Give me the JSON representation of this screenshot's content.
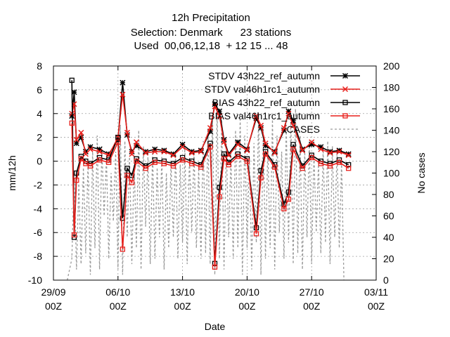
{
  "chart_data": {
    "type": "line",
    "title_lines": [
      "12h Precipitation",
      "Selection: Denmark      23 stations",
      "Used  00,06,12,18  + 12 15 ... 48"
    ],
    "xlabel": "Date",
    "ylabel": "mm/12h",
    "y2label": "No cases",
    "x_ticks": [
      "29/09\n00Z",
      "06/10\n00Z",
      "13/10\n00Z",
      "20/10\n00Z",
      "27/10\n00Z",
      "03/11\n00Z"
    ],
    "x_tick_dates": [
      "2023-09-29T00:00",
      "2023-10-06T00:00",
      "2023-10-13T00:00",
      "2023-10-20T00:00",
      "2023-10-27T00:00",
      "2023-11-03T00:00"
    ],
    "xlim": [
      "2023-09-29T00:00",
      "2023-11-03T00:00"
    ],
    "ylim": [
      -10,
      8
    ],
    "y_ticks": [
      -10,
      -8,
      -6,
      -4,
      -2,
      0,
      2,
      4,
      6,
      8
    ],
    "y2lim": [
      0,
      200
    ],
    "y2_ticks": [
      0,
      20,
      40,
      60,
      80,
      100,
      120,
      140,
      160,
      180,
      200
    ],
    "grid": true,
    "legend_position": "top-right",
    "series": [
      {
        "name": "STDV 43h22_ref_autumn",
        "axis": "y",
        "color": "#000000",
        "marker": "star",
        "x": [
          "2023-10-01T00:00",
          "2023-10-01T06:00",
          "2023-10-01T12:00",
          "2023-10-02T00:00",
          "2023-10-02T12:00",
          "2023-10-03T00:00",
          "2023-10-04T00:00",
          "2023-10-05T00:00",
          "2023-10-06T00:00",
          "2023-10-06T12:00",
          "2023-10-07T00:00",
          "2023-10-07T12:00",
          "2023-10-08T00:00",
          "2023-10-09T00:00",
          "2023-10-10T00:00",
          "2023-10-11T00:00",
          "2023-10-12T00:00",
          "2023-10-13T00:00",
          "2023-10-14T00:00",
          "2023-10-15T00:00",
          "2023-10-16T00:00",
          "2023-10-16T12:00",
          "2023-10-17T00:00",
          "2023-10-17T12:00",
          "2023-10-18T00:00",
          "2023-10-19T00:00",
          "2023-10-20T00:00",
          "2023-10-21T00:00",
          "2023-10-21T12:00",
          "2023-10-22T00:00",
          "2023-10-23T00:00",
          "2023-10-24T00:00",
          "2023-10-24T12:00",
          "2023-10-25T00:00",
          "2023-10-26T00:00",
          "2023-10-27T00:00",
          "2023-10-28T00:00",
          "2023-10-29T00:00",
          "2023-10-30T00:00",
          "2023-10-31T00:00"
        ],
        "y": [
          3.8,
          5.8,
          1.5,
          2.0,
          0.8,
          1.2,
          1.0,
          0.6,
          1.8,
          6.6,
          2.2,
          0.8,
          1.3,
          0.8,
          1.0,
          0.9,
          0.6,
          1.4,
          0.8,
          0.9,
          2.5,
          4.8,
          4.2,
          1.8,
          0.6,
          1.6,
          1.0,
          3.6,
          2.8,
          1.3,
          0.8,
          2.6,
          4.2,
          3.4,
          1.0,
          1.4,
          1.2,
          0.8,
          0.9,
          0.6
        ]
      },
      {
        "name": "STDV val46h1rc1_autumn",
        "axis": "y",
        "color": "#e8201c",
        "marker": "x",
        "x": [
          "2023-10-01T00:00",
          "2023-10-01T06:00",
          "2023-10-01T12:00",
          "2023-10-02T00:00",
          "2023-10-02T12:00",
          "2023-10-03T00:00",
          "2023-10-04T00:00",
          "2023-10-05T00:00",
          "2023-10-06T00:00",
          "2023-10-06T12:00",
          "2023-10-07T00:00",
          "2023-10-07T12:00",
          "2023-10-08T00:00",
          "2023-10-09T00:00",
          "2023-10-10T00:00",
          "2023-10-11T00:00",
          "2023-10-12T00:00",
          "2023-10-13T00:00",
          "2023-10-14T00:00",
          "2023-10-15T00:00",
          "2023-10-16T00:00",
          "2023-10-16T12:00",
          "2023-10-17T00:00",
          "2023-10-17T12:00",
          "2023-10-18T00:00",
          "2023-10-19T00:00",
          "2023-10-20T00:00",
          "2023-10-21T00:00",
          "2023-10-21T12:00",
          "2023-10-22T00:00",
          "2023-10-23T00:00",
          "2023-10-24T00:00",
          "2023-10-24T12:00",
          "2023-10-25T00:00",
          "2023-10-26T00:00",
          "2023-10-27T00:00",
          "2023-10-28T00:00",
          "2023-10-29T00:00",
          "2023-10-30T00:00",
          "2023-10-31T00:00"
        ],
        "y": [
          4.0,
          4.8,
          1.8,
          2.4,
          0.6,
          1.0,
          0.8,
          0.5,
          2.0,
          5.6,
          2.4,
          0.6,
          1.6,
          0.7,
          0.8,
          0.8,
          0.5,
          1.2,
          0.7,
          0.8,
          2.8,
          4.6,
          3.8,
          1.6,
          0.5,
          1.4,
          0.9,
          3.8,
          3.0,
          1.5,
          0.7,
          2.8,
          4.0,
          3.0,
          0.9,
          1.6,
          1.0,
          0.7,
          0.8,
          0.5
        ]
      },
      {
        "name": "BIAS 43h22_ref_autumn",
        "axis": "y",
        "color": "#000000",
        "marker": "square",
        "x": [
          "2023-10-01T00:00",
          "2023-10-01T06:00",
          "2023-10-01T12:00",
          "2023-10-02T00:00",
          "2023-10-02T12:00",
          "2023-10-03T00:00",
          "2023-10-04T00:00",
          "2023-10-05T00:00",
          "2023-10-06T00:00",
          "2023-10-06T12:00",
          "2023-10-07T00:00",
          "2023-10-07T12:00",
          "2023-10-08T00:00",
          "2023-10-09T00:00",
          "2023-10-10T00:00",
          "2023-10-11T00:00",
          "2023-10-12T00:00",
          "2023-10-13T00:00",
          "2023-10-14T00:00",
          "2023-10-15T00:00",
          "2023-10-16T00:00",
          "2023-10-16T12:00",
          "2023-10-17T00:00",
          "2023-10-17T12:00",
          "2023-10-18T00:00",
          "2023-10-19T00:00",
          "2023-10-20T00:00",
          "2023-10-21T00:00",
          "2023-10-21T12:00",
          "2023-10-22T00:00",
          "2023-10-23T00:00",
          "2023-10-24T00:00",
          "2023-10-24T12:00",
          "2023-10-25T00:00",
          "2023-10-26T00:00",
          "2023-10-27T00:00",
          "2023-10-28T00:00",
          "2023-10-29T00:00",
          "2023-10-30T00:00",
          "2023-10-31T00:00"
        ],
        "y": [
          6.8,
          -6.4,
          -1.0,
          0.4,
          0.0,
          -0.2,
          0.3,
          0.1,
          2.0,
          -4.8,
          -0.6,
          -1.2,
          0.2,
          -0.4,
          0.1,
          0.0,
          -0.2,
          0.3,
          0.0,
          -0.3,
          1.5,
          -8.6,
          -2.2,
          0.6,
          -0.1,
          0.6,
          0.2,
          -5.6,
          -0.8,
          0.8,
          -0.3,
          -3.6,
          -2.6,
          1.4,
          -0.4,
          0.5,
          0.0,
          -0.2,
          0.1,
          -0.3
        ]
      },
      {
        "name": "BIAS val46h1rc1_autumn",
        "axis": "y",
        "color": "#e8201c",
        "marker": "square",
        "x": [
          "2023-10-01T00:00",
          "2023-10-01T06:00",
          "2023-10-01T12:00",
          "2023-10-02T00:00",
          "2023-10-02T12:00",
          "2023-10-03T00:00",
          "2023-10-04T00:00",
          "2023-10-05T00:00",
          "2023-10-06T00:00",
          "2023-10-06T12:00",
          "2023-10-07T00:00",
          "2023-10-07T12:00",
          "2023-10-08T00:00",
          "2023-10-09T00:00",
          "2023-10-10T00:00",
          "2023-10-11T00:00",
          "2023-10-12T00:00",
          "2023-10-13T00:00",
          "2023-10-14T00:00",
          "2023-10-15T00:00",
          "2023-10-16T00:00",
          "2023-10-16T12:00",
          "2023-10-17T00:00",
          "2023-10-17T12:00",
          "2023-10-18T00:00",
          "2023-10-19T00:00",
          "2023-10-20T00:00",
          "2023-10-21T00:00",
          "2023-10-21T12:00",
          "2023-10-22T00:00",
          "2023-10-23T00:00",
          "2023-10-24T00:00",
          "2023-10-24T12:00",
          "2023-10-25T00:00",
          "2023-10-26T00:00",
          "2023-10-27T00:00",
          "2023-10-28T00:00",
          "2023-10-29T00:00",
          "2023-10-30T00:00",
          "2023-10-31T00:00"
        ],
        "y": [
          3.2,
          -6.2,
          -1.6,
          0.2,
          -0.2,
          -0.4,
          0.1,
          -0.1,
          1.6,
          -7.4,
          -1.2,
          -1.8,
          0.0,
          -0.6,
          -0.1,
          -0.2,
          -0.4,
          0.1,
          -0.2,
          -0.5,
          1.2,
          -8.9,
          -3.0,
          0.2,
          -0.3,
          0.4,
          0.0,
          -6.1,
          -1.4,
          0.6,
          -0.5,
          -4.0,
          -3.2,
          1.0,
          -0.6,
          0.3,
          -0.2,
          -0.4,
          -0.1,
          -0.6
        ]
      },
      {
        "name": "CASES",
        "axis": "y2",
        "color": "#999999",
        "marker": "none",
        "dashed": true,
        "x": [
          "2023-09-30T12:00",
          "2023-10-01T00:00",
          "2023-10-01T06:00",
          "2023-10-01T12:00",
          "2023-10-01T18:00",
          "2023-10-02T00:00",
          "2023-10-02T06:00",
          "2023-10-02T12:00",
          "2023-10-02T18:00",
          "2023-10-03T00:00",
          "2023-10-03T06:00",
          "2023-10-03T12:00",
          "2023-10-03T18:00",
          "2023-10-04T00:00",
          "2023-10-04T06:00",
          "2023-10-04T12:00",
          "2023-10-04T18:00",
          "2023-10-05T00:00",
          "2023-10-05T06:00",
          "2023-10-05T12:00",
          "2023-10-05T18:00",
          "2023-10-06T00:00",
          "2023-10-06T06:00",
          "2023-10-06T12:00",
          "2023-10-06T18:00",
          "2023-10-07T00:00",
          "2023-10-07T06:00",
          "2023-10-07T12:00",
          "2023-10-07T18:00",
          "2023-10-08T00:00",
          "2023-10-08T06:00",
          "2023-10-08T12:00",
          "2023-10-08T18:00",
          "2023-10-09T00:00",
          "2023-10-09T06:00",
          "2023-10-09T12:00",
          "2023-10-09T18:00",
          "2023-10-10T00:00",
          "2023-10-10T06:00",
          "2023-10-10T12:00",
          "2023-10-10T18:00",
          "2023-10-11T00:00",
          "2023-10-11T06:00",
          "2023-10-11T12:00",
          "2023-10-11T18:00",
          "2023-10-12T00:00",
          "2023-10-12T06:00",
          "2023-10-12T12:00",
          "2023-10-12T18:00",
          "2023-10-13T00:00",
          "2023-10-13T06:00",
          "2023-10-13T12:00",
          "2023-10-13T18:00",
          "2023-10-14T00:00",
          "2023-10-14T06:00",
          "2023-10-14T12:00",
          "2023-10-14T18:00",
          "2023-10-15T00:00",
          "2023-10-15T06:00",
          "2023-10-15T12:00",
          "2023-10-15T18:00",
          "2023-10-16T00:00",
          "2023-10-16T06:00",
          "2023-10-16T12:00",
          "2023-10-16T18:00",
          "2023-10-17T00:00",
          "2023-10-17T06:00",
          "2023-10-17T12:00",
          "2023-10-17T18:00",
          "2023-10-18T00:00",
          "2023-10-18T06:00",
          "2023-10-18T12:00",
          "2023-10-18T18:00",
          "2023-10-19T00:00",
          "2023-10-19T06:00",
          "2023-10-19T12:00",
          "2023-10-19T18:00",
          "2023-10-20T00:00",
          "2023-10-20T06:00",
          "2023-10-20T12:00",
          "2023-10-20T18:00",
          "2023-10-21T00:00",
          "2023-10-21T06:00",
          "2023-10-21T12:00",
          "2023-10-21T18:00",
          "2023-10-22T00:00",
          "2023-10-22T06:00",
          "2023-10-22T12:00",
          "2023-10-22T18:00",
          "2023-10-23T00:00",
          "2023-10-23T06:00",
          "2023-10-23T12:00",
          "2023-10-23T18:00",
          "2023-10-24T00:00",
          "2023-10-24T06:00",
          "2023-10-24T12:00",
          "2023-10-24T18:00",
          "2023-10-25T00:00",
          "2023-10-25T06:00",
          "2023-10-25T12:00",
          "2023-10-25T18:00",
          "2023-10-26T00:00",
          "2023-10-26T06:00",
          "2023-10-26T12:00",
          "2023-10-26T18:00",
          "2023-10-27T00:00",
          "2023-10-27T06:00",
          "2023-10-27T12:00",
          "2023-10-27T18:00",
          "2023-10-28T00:00",
          "2023-10-28T06:00",
          "2023-10-28T12:00",
          "2023-10-28T18:00",
          "2023-10-29T00:00",
          "2023-10-29T06:00",
          "2023-10-29T12:00",
          "2023-10-29T18:00",
          "2023-10-30T00:00",
          "2023-10-30T06:00",
          "2023-10-30T12:00"
        ],
        "y": [
          0,
          20,
          100,
          10,
          90,
          15,
          105,
          25,
          110,
          5,
          120,
          30,
          135,
          10,
          125,
          60,
          115,
          20,
          100,
          55,
          120,
          10,
          145,
          5,
          130,
          40,
          115,
          15,
          110,
          30,
          140,
          10,
          125,
          50,
          115,
          15,
          120,
          20,
          105,
          40,
          115,
          10,
          100,
          30,
          110,
          40,
          120,
          20,
          108,
          35,
          125,
          15,
          115,
          45,
          120,
          30,
          105,
          20,
          130,
          25,
          140,
          15,
          155,
          5,
          160,
          20,
          150,
          10,
          125,
          40,
          115,
          20,
          140,
          30,
          150,
          5,
          135,
          30,
          115,
          10,
          128,
          35,
          155,
          5,
          140,
          20,
          125,
          30,
          150,
          10,
          135,
          45,
          120,
          20,
          145,
          35,
          148,
          15,
          160,
          25,
          135,
          10,
          120,
          40,
          130,
          15,
          118,
          45,
          110,
          25,
          122,
          35,
          130,
          15,
          125,
          40,
          120,
          30,
          110,
          0
        ]
      }
    ]
  }
}
